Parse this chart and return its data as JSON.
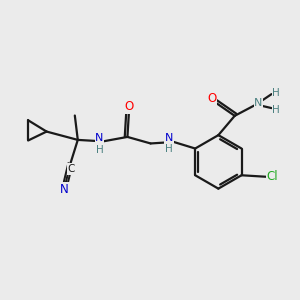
{
  "background_color": "#ebebeb",
  "bond_color": "#1a1a1a",
  "bond_width": 1.6,
  "atom_colors": {
    "O": "#ff0000",
    "N": "#0000cc",
    "H": "#4a8080",
    "Cl": "#22aa22",
    "C": "#1a1a1a",
    "N_blue": "#0000cc"
  },
  "figsize": [
    3.0,
    3.0
  ],
  "dpi": 100
}
